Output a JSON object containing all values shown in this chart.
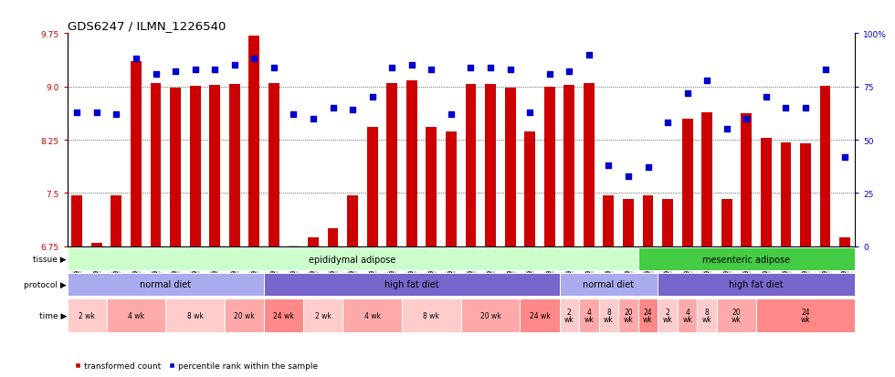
{
  "title": "GDS6247 / ILMN_1226540",
  "samples": [
    "GSM971546",
    "GSM971547",
    "GSM971548",
    "GSM971549",
    "GSM971550",
    "GSM971551",
    "GSM971552",
    "GSM971553",
    "GSM971554",
    "GSM971555",
    "GSM971556",
    "GSM971557",
    "GSM971558",
    "GSM971559",
    "GSM971560",
    "GSM971561",
    "GSM971562",
    "GSM971563",
    "GSM971564",
    "GSM971565",
    "GSM971566",
    "GSM971567",
    "GSM971568",
    "GSM971569",
    "GSM971570",
    "GSM971571",
    "GSM971572",
    "GSM971573",
    "GSM971574",
    "GSM971575",
    "GSM971576",
    "GSM971577",
    "GSM971578",
    "GSM971579",
    "GSM971580",
    "GSM971581",
    "GSM971582",
    "GSM971583",
    "GSM971584",
    "GSM971585"
  ],
  "bar_values": [
    7.47,
    6.8,
    7.47,
    9.35,
    9.05,
    8.98,
    9.01,
    9.02,
    9.03,
    9.72,
    9.05,
    6.75,
    6.87,
    7.01,
    7.47,
    8.43,
    9.05,
    9.08,
    8.43,
    8.37,
    9.03,
    9.03,
    8.98,
    8.37,
    8.99,
    9.02,
    9.05,
    7.47,
    7.41,
    7.47,
    7.42,
    8.55,
    8.63,
    7.42,
    8.62,
    8.28,
    8.21,
    8.2,
    9.01,
    6.87
  ],
  "percentile_values": [
    63,
    63,
    62,
    88,
    81,
    82,
    83,
    83,
    85,
    88,
    84,
    62,
    60,
    65,
    64,
    70,
    84,
    85,
    83,
    62,
    84,
    84,
    83,
    63,
    81,
    82,
    90,
    38,
    33,
    37,
    58,
    72,
    78,
    55,
    60,
    70,
    65,
    65,
    83,
    42
  ],
  "ylim_left": [
    6.75,
    9.75
  ],
  "ylim_right": [
    0,
    100
  ],
  "yticks_left": [
    6.75,
    7.5,
    8.25,
    9.0,
    9.75
  ],
  "yticks_right": [
    0,
    25,
    50,
    75,
    100
  ],
  "bar_color": "#cc0000",
  "dot_color": "#0000cc",
  "tissue_segments": [
    {
      "text": "epididymal adipose",
      "start": 0,
      "end": 29,
      "color": "#ccffcc"
    },
    {
      "text": "mesenteric adipose",
      "start": 29,
      "end": 40,
      "color": "#44cc44"
    }
  ],
  "protocol_segments": [
    {
      "text": "normal diet",
      "start": 0,
      "end": 10,
      "color": "#aaaaee"
    },
    {
      "text": "high fat diet",
      "start": 10,
      "end": 25,
      "color": "#7766cc"
    },
    {
      "text": "normal diet",
      "start": 25,
      "end": 30,
      "color": "#aaaaee"
    },
    {
      "text": "high fat diet",
      "start": 30,
      "end": 40,
      "color": "#7766cc"
    }
  ],
  "time_segments": [
    {
      "text": "2 wk",
      "start": 0,
      "end": 2,
      "color": "#ffcccc"
    },
    {
      "text": "4 wk",
      "start": 2,
      "end": 5,
      "color": "#ffaaaa"
    },
    {
      "text": "8 wk",
      "start": 5,
      "end": 8,
      "color": "#ffcccc"
    },
    {
      "text": "20 wk",
      "start": 8,
      "end": 10,
      "color": "#ffaaaa"
    },
    {
      "text": "24 wk",
      "start": 10,
      "end": 12,
      "color": "#ff8888"
    },
    {
      "text": "2 wk",
      "start": 12,
      "end": 14,
      "color": "#ffcccc"
    },
    {
      "text": "4 wk",
      "start": 14,
      "end": 17,
      "color": "#ffaaaa"
    },
    {
      "text": "8 wk",
      "start": 17,
      "end": 20,
      "color": "#ffcccc"
    },
    {
      "text": "20 wk",
      "start": 20,
      "end": 23,
      "color": "#ffaaaa"
    },
    {
      "text": "24 wk",
      "start": 23,
      "end": 25,
      "color": "#ff8888"
    },
    {
      "text": "2\nwk",
      "start": 25,
      "end": 26,
      "color": "#ffcccc"
    },
    {
      "text": "4\nwk",
      "start": 26,
      "end": 27,
      "color": "#ffaaaa"
    },
    {
      "text": "8\nwk",
      "start": 27,
      "end": 28,
      "color": "#ffcccc"
    },
    {
      "text": "20\nwk",
      "start": 28,
      "end": 29,
      "color": "#ffaaaa"
    },
    {
      "text": "24\nwk",
      "start": 29,
      "end": 30,
      "color": "#ff8888"
    },
    {
      "text": "2\nwk",
      "start": 30,
      "end": 31,
      "color": "#ffcccc"
    },
    {
      "text": "4\nwk",
      "start": 31,
      "end": 32,
      "color": "#ffaaaa"
    },
    {
      "text": "8\nwk",
      "start": 32,
      "end": 33,
      "color": "#ffcccc"
    },
    {
      "text": "20\nwk",
      "start": 33,
      "end": 35,
      "color": "#ffaaaa"
    },
    {
      "text": "24\nwk",
      "start": 35,
      "end": 40,
      "color": "#ff8888"
    }
  ],
  "legend_items": [
    {
      "label": "transformed count",
      "color": "#cc0000"
    },
    {
      "label": "percentile rank within the sample",
      "color": "#0000cc"
    }
  ]
}
